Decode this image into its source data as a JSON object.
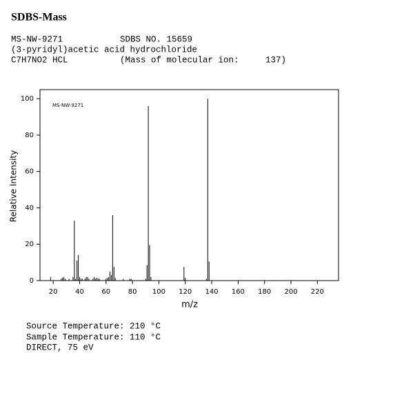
{
  "header": {
    "title": "SDBS-Mass",
    "lines": [
      [
        "MS-NW-9271",
        "SDBS NO. 15659"
      ],
      [
        "(3-pyridyl)acetic acid hydrochloride"
      ],
      [
        "C7H7NO2 HCL",
        "(Mass of molecular ion:",
        "137)"
      ]
    ]
  },
  "chart_data": {
    "type": "stick",
    "annotation": "MS-NW-9271",
    "x_label": "m/z",
    "y_label": "Relative Intensity",
    "color": "#000000",
    "x": [
      18,
      26,
      27,
      28,
      29,
      32,
      35,
      36,
      37,
      38,
      39,
      40,
      41,
      42,
      44,
      45,
      46,
      47,
      50,
      51,
      52,
      53,
      54,
      55,
      60,
      61,
      62,
      63,
      64,
      65,
      66,
      67,
      73,
      78,
      79,
      90,
      91,
      92,
      93,
      94,
      119,
      120,
      136,
      137,
      138
    ],
    "values": [
      2,
      1,
      1.5,
      2,
      1,
      1,
      2,
      33,
      1,
      11,
      14,
      2,
      1,
      1,
      1,
      2,
      2,
      1,
      1,
      2,
      1,
      1.5,
      1,
      1,
      1,
      1.5,
      2,
      5,
      3,
      36,
      7.5,
      1.5,
      1,
      1,
      1,
      1,
      8.5,
      96,
      19.5,
      2,
      7.5,
      1.5,
      1,
      100,
      10.5
    ],
    "xlim": [
      10,
      236
    ],
    "ylim": [
      0,
      105
    ],
    "xticks": [
      20,
      40,
      60,
      80,
      100,
      120,
      140,
      160,
      180,
      200,
      220
    ],
    "yticks": [
      0,
      20,
      40,
      60,
      80,
      100
    ]
  },
  "footer": [
    "Source Temperature: 210 °C",
    "Sample Temperature: 110 °C",
    "DIRECT, 75 eV"
  ]
}
